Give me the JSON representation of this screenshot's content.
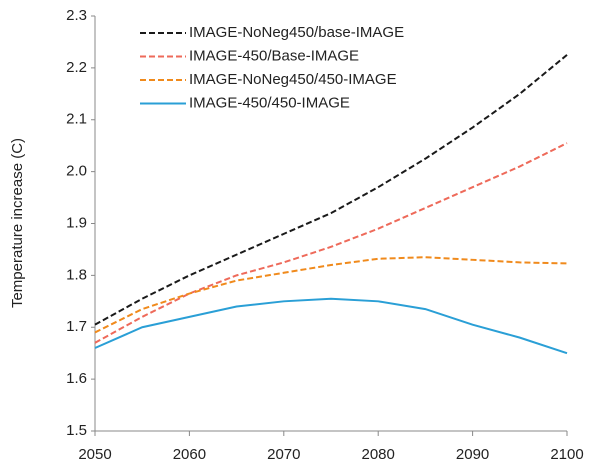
{
  "chart_data": {
    "type": "line",
    "y_label": "Temperature increase (C)",
    "x": [
      2050,
      2055,
      2060,
      2065,
      2070,
      2075,
      2080,
      2085,
      2090,
      2095,
      2100
    ],
    "series": [
      {
        "name": "IMAGE-NoNeg450/base-IMAGE",
        "color": "#1a1a1a",
        "dash": true,
        "values": [
          1.705,
          1.755,
          1.8,
          1.84,
          1.88,
          1.92,
          1.97,
          2.025,
          2.085,
          2.15,
          2.225
        ]
      },
      {
        "name": "IMAGE-450/Base-IMAGE",
        "color": "#ee6a5a",
        "dash": true,
        "values": [
          1.67,
          1.72,
          1.765,
          1.8,
          1.825,
          1.855,
          1.89,
          1.93,
          1.97,
          2.01,
          2.055
        ]
      },
      {
        "name": "IMAGE-NoNeg450/450-IMAGE",
        "color": "#f08a1c",
        "dash": true,
        "values": [
          1.69,
          1.735,
          1.765,
          1.79,
          1.805,
          1.82,
          1.832,
          1.835,
          1.83,
          1.825,
          1.823
        ]
      },
      {
        "name": "IMAGE-450/450-IMAGE",
        "color": "#2a9fd6",
        "dash": false,
        "values": [
          1.66,
          1.7,
          1.72,
          1.74,
          1.75,
          1.755,
          1.75,
          1.735,
          1.705,
          1.68,
          1.65
        ]
      }
    ],
    "xlim": [
      2050,
      2100
    ],
    "xticks": [
      2050,
      2060,
      2070,
      2080,
      2090,
      2100
    ],
    "ylim": [
      1.5,
      2.3
    ],
    "yticks": [
      1.5,
      1.6,
      1.7,
      1.8,
      1.9,
      {
        "value": 2,
        "label": "2.0"
      },
      2.1,
      2.2,
      2.3
    ],
    "grid": false,
    "legend": "top-left"
  }
}
